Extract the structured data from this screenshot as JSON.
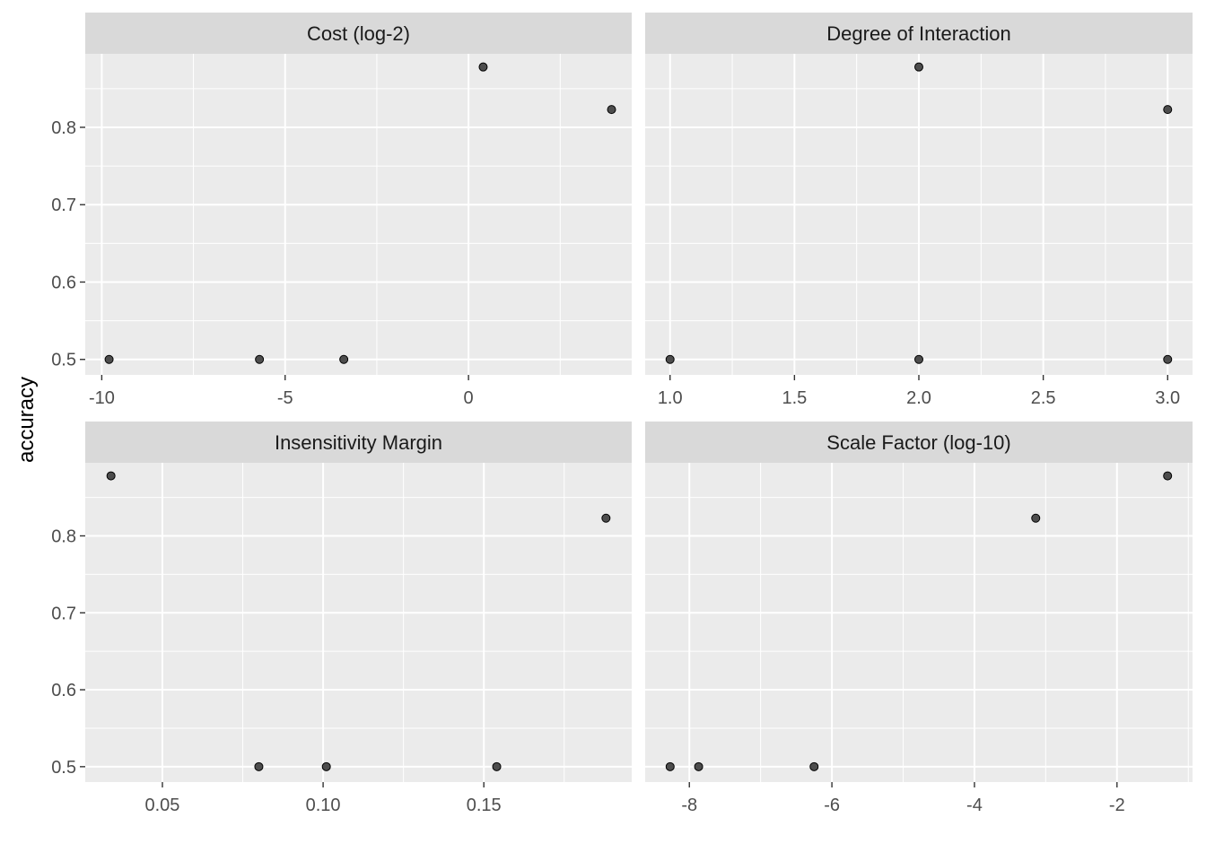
{
  "chart_data": {
    "type": "scatter",
    "ylabel": "accuracy",
    "ylim": [
      0.48,
      0.895
    ],
    "y_ticks": [
      0.5,
      0.6,
      0.7,
      0.8
    ],
    "y_tick_labels": [
      "0.5",
      "0.6",
      "0.7",
      "0.8"
    ],
    "grid": true,
    "point_color": "#4D4D4D",
    "panel_background": "#EBEBEB",
    "strip_background": "#D9D9D9",
    "panels": [
      {
        "title": "Cost (log-2)",
        "xlim": [
          -10.45,
          4.45
        ],
        "x_ticks": [
          -10,
          -5,
          0
        ],
        "x_tick_labels": [
          "-10",
          "-5",
          "0"
        ],
        "x_minor": [
          -7.5,
          -2.5,
          2.5
        ],
        "points": [
          {
            "x": -9.8,
            "y": 0.5
          },
          {
            "x": -5.7,
            "y": 0.5
          },
          {
            "x": -3.4,
            "y": 0.5
          },
          {
            "x": 0.4,
            "y": 0.878
          },
          {
            "x": 3.9,
            "y": 0.823
          }
        ]
      },
      {
        "title": "Degree of Interaction",
        "xlim": [
          0.9,
          3.1
        ],
        "x_ticks": [
          1.0,
          1.5,
          2.0,
          2.5,
          3.0
        ],
        "x_tick_labels": [
          "1.0",
          "1.5",
          "2.0",
          "2.5",
          "3.0"
        ],
        "x_minor": [
          1.25,
          1.75,
          2.25,
          2.75
        ],
        "points": [
          {
            "x": 1.0,
            "y": 0.5
          },
          {
            "x": 2.0,
            "y": 0.878
          },
          {
            "x": 2.0,
            "y": 0.5
          },
          {
            "x": 3.0,
            "y": 0.823
          },
          {
            "x": 3.0,
            "y": 0.5
          }
        ]
      },
      {
        "title": "Insensitivity Margin",
        "xlim": [
          0.026,
          0.196
        ],
        "x_ticks": [
          0.05,
          0.1,
          0.15
        ],
        "x_tick_labels": [
          "0.05",
          "0.10",
          "0.15"
        ],
        "x_minor": [
          0.075,
          0.125,
          0.175
        ],
        "points": [
          {
            "x": 0.034,
            "y": 0.878
          },
          {
            "x": 0.08,
            "y": 0.5
          },
          {
            "x": 0.101,
            "y": 0.5
          },
          {
            "x": 0.154,
            "y": 0.5
          },
          {
            "x": 0.188,
            "y": 0.823
          }
        ]
      },
      {
        "title": "Scale Factor (log-10)",
        "xlim": [
          -8.62,
          -0.94
        ],
        "x_ticks": [
          -8,
          -6,
          -4,
          -2
        ],
        "x_tick_labels": [
          "-8",
          "-6",
          "-4",
          "-2"
        ],
        "x_minor": [
          -7,
          -5,
          -3,
          -1
        ],
        "points": [
          {
            "x": -8.27,
            "y": 0.5
          },
          {
            "x": -7.87,
            "y": 0.5
          },
          {
            "x": -6.25,
            "y": 0.5
          },
          {
            "x": -3.14,
            "y": 0.823
          },
          {
            "x": -1.29,
            "y": 0.878
          }
        ]
      }
    ]
  }
}
